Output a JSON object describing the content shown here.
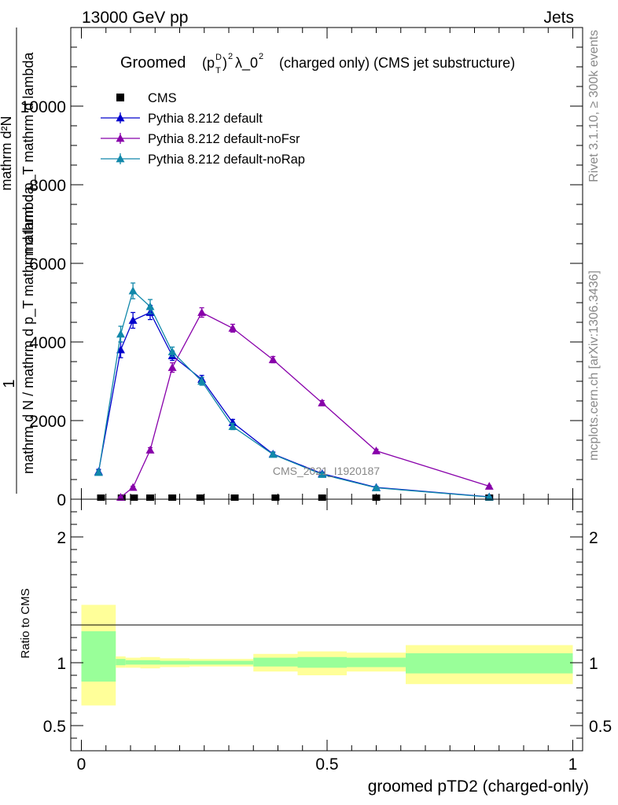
{
  "header": {
    "left": "13000 GeV pp",
    "right": "Jets"
  },
  "side": {
    "rivet": "Rivet 3.1.10, ≥ 300k events",
    "mcplots": "mcplots.cern.ch [arXiv:1306.3436]"
  },
  "chart_data": [
    {
      "type": "line",
      "title_prefix": "Groomed",
      "title_math": "(p_T^D)^2 λ_0^2",
      "title_suffix": "(charged only) (CMS jet substructure)",
      "watermark": "CMS_2021_I1920187",
      "ylabel_top": "1",
      "ylabel_main": "mathrm d N / mathrm d p_T mathrm d lambda",
      "ylabel_num": "mathrm d²N",
      "ylabel_den": "mathrm d p_T mathrm d lambda",
      "xlim": [
        0,
        1
      ],
      "ylim": [
        0,
        12000
      ],
      "yticks": [
        {
          "v": 0,
          "label": "0"
        },
        {
          "v": 2000,
          "label": "2000"
        },
        {
          "v": 4000,
          "label": "4000"
        },
        {
          "v": 6000,
          "label": "6000"
        },
        {
          "v": 8000,
          "label": "8000"
        },
        {
          "v": 10000,
          "label": "10000"
        }
      ],
      "data_points": {
        "name": "CMS",
        "x": [
          0.04,
          0.082,
          0.107,
          0.14,
          0.185,
          0.242,
          0.312,
          0.395,
          0.49,
          0.6,
          0.83
        ],
        "y": [
          0,
          0,
          0,
          0,
          0,
          0,
          0,
          0,
          0,
          0,
          0
        ]
      },
      "series": [
        {
          "name": "Pythia 8.212 default",
          "color": "#0000cc",
          "x": [
            0.035,
            0.08,
            0.105,
            0.14,
            0.185,
            0.245,
            0.308,
            0.39,
            0.49,
            0.6,
            0.83
          ],
          "y": [
            700,
            3800,
            4550,
            4750,
            3650,
            3050,
            1950,
            1150,
            650,
            300,
            60
          ],
          "err": [
            60,
            200,
            200,
            180,
            120,
            100,
            80,
            50,
            40,
            25,
            12
          ]
        },
        {
          "name": "Pythia 8.212 default-noFsr",
          "color": "#8800aa",
          "x": [
            0.08,
            0.105,
            0.14,
            0.185,
            0.245,
            0.308,
            0.39,
            0.49,
            0.6,
            0.83
          ],
          "y": [
            50,
            300,
            1250,
            3350,
            4750,
            4350,
            3550,
            2450,
            1230,
            330
          ],
          "err": [
            10,
            30,
            60,
            120,
            120,
            100,
            80,
            60,
            40,
            20
          ]
        },
        {
          "name": "Pythia 8.212 default-noRap",
          "color": "#1188aa",
          "x": [
            0.035,
            0.08,
            0.105,
            0.14,
            0.185,
            0.245,
            0.308,
            0.39,
            0.49,
            0.6,
            0.83
          ],
          "y": [
            680,
            4200,
            5300,
            4900,
            3750,
            3000,
            1850,
            1140,
            630,
            290,
            55
          ],
          "err": [
            60,
            200,
            200,
            180,
            120,
            100,
            80,
            50,
            40,
            25,
            12
          ]
        }
      ]
    },
    {
      "type": "area",
      "ylabel": "Ratio to CMS",
      "xlabel": "groomed pTD2 (charged-only)",
      "xlim": [
        0,
        1
      ],
      "ylim": [
        0.3,
        2.3
      ],
      "yticks": [
        {
          "v": 0.5,
          "label": "0.5"
        },
        {
          "v": 1,
          "label": "1"
        },
        {
          "v": 2,
          "label": "2"
        }
      ],
      "xticks": [
        {
          "v": 0,
          "label": "0"
        },
        {
          "v": 0.5,
          "label": "0.5"
        },
        {
          "v": 1,
          "label": "1"
        }
      ],
      "bins": [
        {
          "lo": 0.0,
          "hi": 0.07,
          "inner": [
            0.85,
            1.25
          ],
          "outer": [
            0.66,
            1.46
          ]
        },
        {
          "lo": 0.07,
          "hi": 0.09,
          "inner": [
            0.98,
            1.03
          ],
          "outer": [
            0.96,
            1.05
          ]
        },
        {
          "lo": 0.09,
          "hi": 0.12,
          "inner": [
            0.985,
            1.02
          ],
          "outer": [
            0.96,
            1.04
          ]
        },
        {
          "lo": 0.12,
          "hi": 0.16,
          "inner": [
            0.985,
            1.02
          ],
          "outer": [
            0.955,
            1.045
          ]
        },
        {
          "lo": 0.16,
          "hi": 0.22,
          "inner": [
            0.985,
            1.015
          ],
          "outer": [
            0.965,
            1.035
          ]
        },
        {
          "lo": 0.22,
          "hi": 0.28,
          "inner": [
            0.985,
            1.015
          ],
          "outer": [
            0.97,
            1.03
          ]
        },
        {
          "lo": 0.28,
          "hi": 0.35,
          "inner": [
            0.985,
            1.015
          ],
          "outer": [
            0.97,
            1.03
          ]
        },
        {
          "lo": 0.35,
          "hi": 0.44,
          "inner": [
            0.97,
            1.04
          ],
          "outer": [
            0.93,
            1.07
          ]
        },
        {
          "lo": 0.44,
          "hi": 0.54,
          "inner": [
            0.96,
            1.045
          ],
          "outer": [
            0.9,
            1.09
          ]
        },
        {
          "lo": 0.54,
          "hi": 0.66,
          "inner": [
            0.965,
            1.04
          ],
          "outer": [
            0.93,
            1.08
          ]
        },
        {
          "lo": 0.66,
          "hi": 1.0,
          "inner": [
            0.915,
            1.075
          ],
          "outer": [
            0.83,
            1.14
          ]
        }
      ]
    }
  ]
}
